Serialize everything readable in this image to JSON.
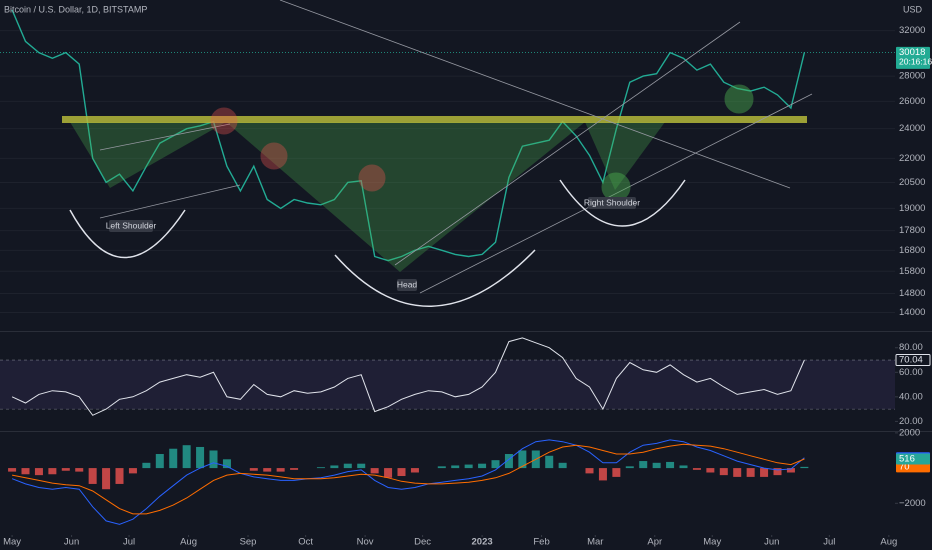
{
  "chart_data": [
    {
      "type": "line",
      "title": "Bitcoin / U.S. Dollar, 1D, BITSTAMP",
      "y_label": "USD",
      "log": true,
      "grid": true,
      "countdown": "20:16:16",
      "xlim": [
        -0.9,
        65.75
      ],
      "ylim": [
        13300,
        35000
      ],
      "yticks": [
        32000,
        28000,
        26000,
        24000,
        22000,
        20500,
        19000,
        17800,
        16800,
        15800,
        14800,
        14000
      ],
      "annotations": [
        "Left Shoulder",
        "Head",
        "Right Shoulder"
      ],
      "series": [
        {
          "color": "#22ab94",
          "values": [
            34000,
            31000,
            30000,
            29500,
            30000,
            29000,
            22000,
            20500,
            21000,
            20000,
            21500,
            23000,
            23500,
            24000,
            24200,
            24500,
            21500,
            20000,
            21500,
            19500,
            19000,
            19500,
            19300,
            19200,
            19500,
            20500,
            20600,
            16500,
            16300,
            16500,
            16800,
            17000,
            16800,
            16600,
            16500,
            16600,
            17200,
            20800,
            22800,
            23000,
            23200,
            24500,
            23500,
            22200,
            20500,
            24000,
            27500,
            28000,
            28200,
            30000,
            29500,
            28500,
            29000,
            27500,
            27000,
            26800,
            27100,
            26500,
            25500,
            30018
          ]
        }
      ]
    },
    {
      "type": "line",
      "grid": false,
      "xlim": [
        -0.9,
        65.75
      ],
      "ylim": [
        13,
        92
      ],
      "band": [
        30,
        70
      ],
      "yticks": [
        {
          "value": 80,
          "label": "80.00"
        },
        {
          "value": 60,
          "label": "60.00"
        },
        {
          "value": 40,
          "label": "40.00"
        },
        {
          "value": 20,
          "label": "20.00"
        }
      ],
      "series": [
        {
          "color": "#e0e3eb",
          "values": [
            40,
            35,
            42,
            45,
            44,
            40,
            25,
            30,
            38,
            40,
            45,
            52,
            55,
            58,
            56,
            60,
            40,
            38,
            50,
            42,
            40,
            45,
            43,
            44,
            48,
            55,
            58,
            28,
            32,
            38,
            42,
            45,
            44,
            40,
            42,
            48,
            60,
            85,
            88,
            84,
            80,
            72,
            55,
            48,
            30,
            55,
            68,
            62,
            60,
            66,
            58,
            52,
            55,
            48,
            42,
            44,
            46,
            42,
            45,
            70.04
          ]
        }
      ]
    },
    {
      "type": "line",
      "grid": false,
      "xlim": [
        -0.9,
        65.75
      ],
      "ylim": [
        -3800,
        2050
      ],
      "yticks": [
        2000,
        {
          "value": -2000,
          "label": "−2000"
        }
      ],
      "xticks": [
        {
          "value": 0,
          "label": "May"
        },
        {
          "value": 4.43,
          "label": "Jun"
        },
        {
          "value": 8.71,
          "label": "Jul"
        },
        {
          "value": 13.14,
          "label": "Aug"
        },
        {
          "value": 17.57,
          "label": "Sep"
        },
        {
          "value": 21.86,
          "label": "Oct"
        },
        {
          "value": 26.29,
          "label": "Nov"
        },
        {
          "value": 30.57,
          "label": "Dec"
        },
        {
          "value": 35,
          "label": "2023"
        },
        {
          "value": 39.43,
          "label": "Feb"
        },
        {
          "value": 43.43,
          "label": "Mar"
        },
        {
          "value": 47.86,
          "label": "Apr"
        },
        {
          "value": 52.14,
          "label": "May"
        },
        {
          "value": 56.57,
          "label": "Jun"
        },
        {
          "value": 60.86,
          "label": "Jul"
        },
        {
          "value": 65.29,
          "label": "Aug"
        }
      ],
      "series": [
        {
          "type": "bar",
          "color": "#26a69a",
          "negative_color": "#ef5350",
          "label_color": "#ff6d00",
          "values": [
            -200,
            -350,
            -400,
            -350,
            -150,
            -200,
            -900,
            -1200,
            -900,
            -300,
            300,
            800,
            1100,
            1300,
            1200,
            1000,
            500,
            0,
            -150,
            -200,
            -200,
            -100,
            0,
            50,
            150,
            250,
            250,
            -300,
            -550,
            -450,
            -250,
            0,
            100,
            150,
            200,
            250,
            450,
            800,
            1000,
            1000,
            700,
            300,
            0,
            -300,
            -700,
            -500,
            100,
            400,
            300,
            350,
            150,
            -100,
            -250,
            -400,
            -500,
            -500,
            -500,
            -400,
            -250,
            70
          ]
        },
        {
          "color": "#2962ff",
          "values": [
            -600,
            -900,
            -1100,
            -1200,
            -1100,
            -1200,
            -2200,
            -3000,
            -3200,
            -2900,
            -2300,
            -1600,
            -1000,
            -400,
            0,
            300,
            100,
            -300,
            -500,
            -600,
            -700,
            -700,
            -600,
            -550,
            -400,
            -200,
            -100,
            -700,
            -1100,
            -1200,
            -1100,
            -900,
            -800,
            -700,
            -600,
            -450,
            -100,
            500,
            1100,
            1500,
            1600,
            1500,
            1300,
            900,
            300,
            300,
            900,
            1300,
            1400,
            1600,
            1500,
            1200,
            1000,
            700,
            400,
            200,
            0,
            -100,
            -50,
            585
          ]
        },
        {
          "color": "#ff6d00",
          "label_color": "#26a69a",
          "values": [
            -400,
            -550,
            -700,
            -850,
            -950,
            -1000,
            -1300,
            -1800,
            -2300,
            -2600,
            -2600,
            -2400,
            -2100,
            -1700,
            -1200,
            -700,
            -400,
            -300,
            -350,
            -400,
            -500,
            -600,
            -600,
            -600,
            -550,
            -450,
            -350,
            -400,
            -550,
            -750,
            -850,
            -900,
            -900,
            -850,
            -800,
            -700,
            -550,
            -300,
            100,
            500,
            900,
            1200,
            1300,
            1200,
            1000,
            800,
            800,
            900,
            1100,
            1250,
            1350,
            1300,
            1250,
            1100,
            900,
            700,
            500,
            300,
            200,
            516
          ]
        }
      ]
    }
  ]
}
